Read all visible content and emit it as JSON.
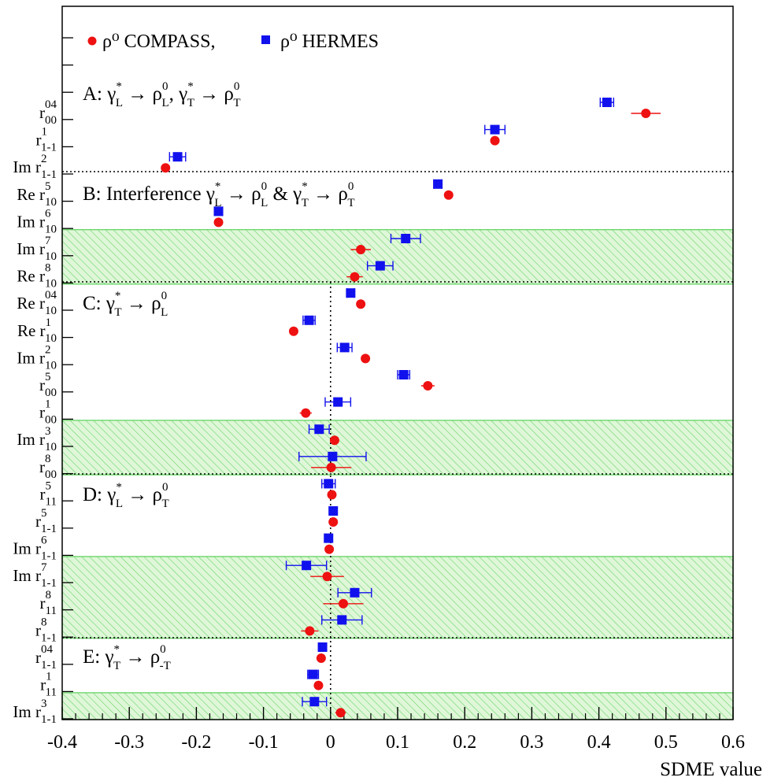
{
  "chart_data": {
    "type": "scatter",
    "xlabel": "SDME value",
    "xlim": [
      -0.4,
      0.6
    ],
    "xticks": [
      "-0.4",
      "-0.3",
      "-0.2",
      "-0.1",
      "0",
      "0.1",
      "0.2",
      "0.3",
      "0.4",
      "0.5",
      "0.6"
    ],
    "xtick_values": [
      -0.4,
      -0.3,
      -0.2,
      -0.1,
      0,
      0.1,
      0.2,
      0.3,
      0.4,
      0.5,
      0.6
    ],
    "legend": {
      "compass": "ρ⁰ COMPASS,",
      "hermes": "ρ⁰ HERMES"
    },
    "colors": {
      "compass": "#ee1111",
      "hermes": "#1111ee",
      "band_fill": "#d8f5d0",
      "band_line": "#5ad15a"
    },
    "sections": [
      {
        "id": "A",
        "label": "A: γ*L → ρ0L,   γ*T → ρ0T"
      },
      {
        "id": "B",
        "label": "B: Interference γ*L → ρ0L & γ*T → ρ0T"
      },
      {
        "id": "C",
        "label": "C: γ*T → ρ0L"
      },
      {
        "id": "D",
        "label": "D: γ*L → ρ0T"
      },
      {
        "id": "E",
        "label": "E: γ*T → ρ0-T"
      }
    ],
    "rows": [
      {
        "label": "r⁰⁴₀₀",
        "pre": "",
        "sup": "04",
        "sub": "00",
        "compass": 0.47,
        "compass_err": 0.022,
        "hermes": 0.412,
        "hermes_err": 0.01,
        "shaded": false
      },
      {
        "label": "r¹₁₋₁",
        "pre": "",
        "sup": "1",
        "sub": "1-1",
        "compass": 0.245,
        "compass_err": 0.003,
        "hermes": 0.245,
        "hermes_err": 0.015,
        "shaded": false
      },
      {
        "label": "Im r²₁₋₁",
        "pre": "Im ",
        "sup": "2",
        "sub": "1-1",
        "compass": -0.246,
        "compass_err": 0.003,
        "hermes": -0.228,
        "hermes_err": 0.012,
        "shaded": false
      },
      {
        "label": "Re r⁵₁₀",
        "pre": "Re ",
        "sup": "5",
        "sub": "10",
        "compass": 0.176,
        "compass_err": 0.002,
        "hermes": 0.16,
        "hermes_err": 0.006,
        "shaded": false
      },
      {
        "label": "Im r⁶₁₀",
        "pre": "Im ",
        "sup": "6",
        "sub": "10",
        "compass": -0.167,
        "compass_err": 0.002,
        "hermes": -0.167,
        "hermes_err": 0.006,
        "shaded": false
      },
      {
        "label": "Im r⁷₁₀",
        "pre": "Im ",
        "sup": "7",
        "sub": "10",
        "compass": 0.045,
        "compass_err": 0.015,
        "hermes": 0.112,
        "hermes_err": 0.022,
        "shaded": true
      },
      {
        "label": "Re r⁸₁₀",
        "pre": "Re ",
        "sup": "8",
        "sub": "10",
        "compass": 0.036,
        "compass_err": 0.012,
        "hermes": 0.074,
        "hermes_err": 0.019,
        "shaded": true
      },
      {
        "label": "Re r⁰⁴₁₀",
        "pre": "Re ",
        "sup": "04",
        "sub": "10",
        "compass": 0.045,
        "compass_err": 0.002,
        "hermes": 0.03,
        "hermes_err": 0.005,
        "shaded": false
      },
      {
        "label": "Re r¹₁₀",
        "pre": "Re ",
        "sup": "1",
        "sub": "10",
        "compass": -0.055,
        "compass_err": 0.002,
        "hermes": -0.032,
        "hermes_err": 0.009,
        "shaded": false
      },
      {
        "label": "Im r²₁₀",
        "pre": "Im ",
        "sup": "2",
        "sub": "10",
        "compass": 0.052,
        "compass_err": 0.002,
        "hermes": 0.021,
        "hermes_err": 0.011,
        "shaded": false
      },
      {
        "label": "r⁵₀₀",
        "pre": "",
        "sup": "5",
        "sub": "00",
        "compass": 0.145,
        "compass_err": 0.01,
        "hermes": 0.109,
        "hermes_err": 0.009,
        "shaded": false
      },
      {
        "label": "r¹₀₀",
        "pre": "",
        "sup": "1",
        "sub": "00",
        "compass": -0.037,
        "compass_err": 0.009,
        "hermes": 0.011,
        "hermes_err": 0.019,
        "shaded": false
      },
      {
        "label": "Im r³₁₀",
        "pre": "Im ",
        "sup": "3",
        "sub": "10",
        "compass": 0.006,
        "compass_err": 0.004,
        "hermes": -0.017,
        "hermes_err": 0.015,
        "shaded": true
      },
      {
        "label": "r⁸₀₀",
        "pre": "",
        "sup": "8",
        "sub": "00",
        "compass": 0.001,
        "compass_err": 0.03,
        "hermes": 0.003,
        "hermes_err": 0.05,
        "shaded": true
      },
      {
        "label": "r⁵₁₁",
        "pre": "",
        "sup": "5",
        "sub": "11",
        "compass": 0.002,
        "compass_err": 0.003,
        "hermes": -0.003,
        "hermes_err": 0.01,
        "shaded": false
      },
      {
        "label": "r⁵₁₋₁",
        "pre": "",
        "sup": "5",
        "sub": "1-1",
        "compass": 0.004,
        "compass_err": 0.003,
        "hermes": 0.004,
        "hermes_err": 0.004,
        "shaded": false
      },
      {
        "label": "Im r⁶₁₋₁",
        "pre": "Im ",
        "sup": "6",
        "sub": "1-1",
        "compass": -0.002,
        "compass_err": 0.003,
        "hermes": -0.003,
        "hermes_err": 0.004,
        "shaded": false
      },
      {
        "label": "Im r⁷₁₋₁",
        "pre": "Im ",
        "sup": "7",
        "sub": "1-1",
        "compass": -0.005,
        "compass_err": 0.025,
        "hermes": -0.036,
        "hermes_err": 0.03,
        "shaded": true
      },
      {
        "label": "r⁸₁₁",
        "pre": "",
        "sup": "8",
        "sub": "11",
        "compass": 0.019,
        "compass_err": 0.03,
        "hermes": 0.036,
        "hermes_err": 0.025,
        "shaded": true
      },
      {
        "label": "r⁸₁₋₁",
        "pre": "",
        "sup": "8",
        "sub": "1-1",
        "compass": -0.031,
        "compass_err": 0.013,
        "hermes": 0.017,
        "hermes_err": 0.03,
        "shaded": true
      },
      {
        "label": "r⁰⁴₁₋₁",
        "pre": "",
        "sup": "04",
        "sub": "1-1",
        "compass": -0.014,
        "compass_err": 0.002,
        "hermes": -0.012,
        "hermes_err": 0.004,
        "shaded": false
      },
      {
        "label": "r¹₁₁",
        "pre": "",
        "sup": "1",
        "sub": "11",
        "compass": -0.018,
        "compass_err": 0.003,
        "hermes": -0.026,
        "hermes_err": 0.008,
        "shaded": false
      },
      {
        "label": "Im r³₁₋₁",
        "pre": "Im ",
        "sup": "3",
        "sub": "1-1",
        "compass": 0.015,
        "compass_err": 0.008,
        "hermes": -0.024,
        "hermes_err": 0.018,
        "shaded": true
      }
    ]
  }
}
